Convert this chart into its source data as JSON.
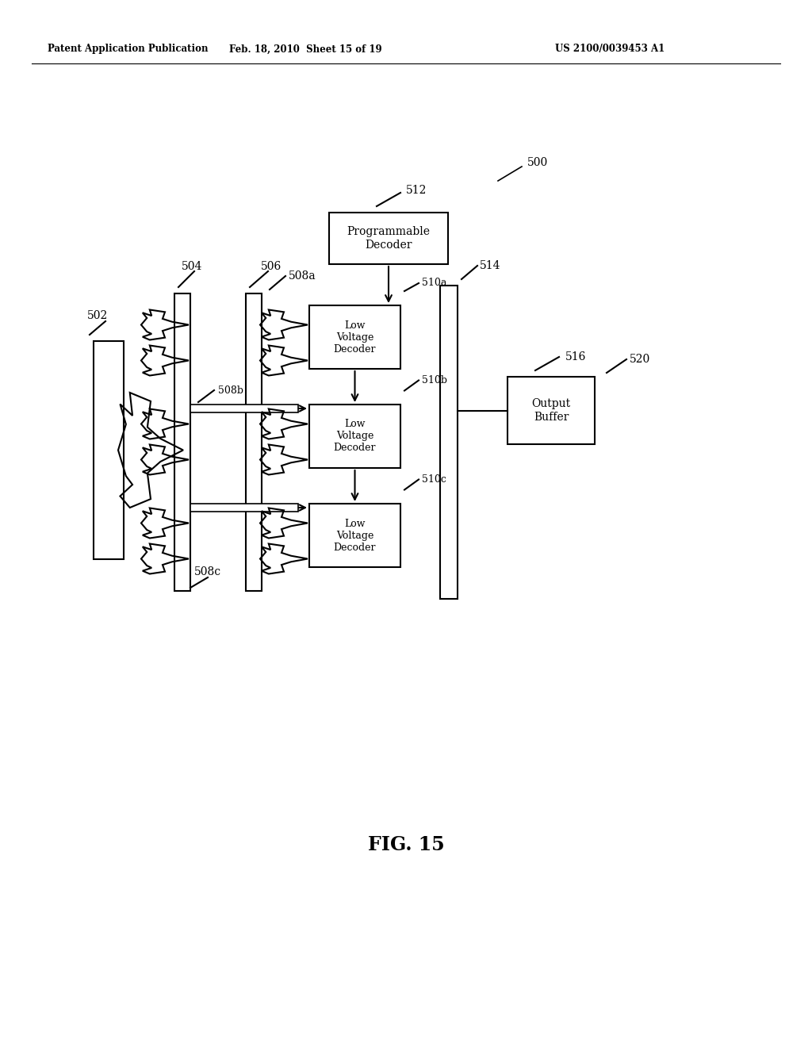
{
  "bg_color": "#ffffff",
  "header_left": "Patent Application Publication",
  "header_mid": "Feb. 18, 2010  Sheet 15 of 19",
  "header_right": "US 2100/0039453 A1",
  "fig_label": "FIG. 15",
  "prog_decoder_text": "Programmable\nDecoder",
  "lv_decoder_text": "Low\nVoltage\nDecoder",
  "output_buffer_text": "Output\nBuffer",
  "label_500": "500",
  "label_502": "502",
  "label_504": "504",
  "label_506": "506",
  "label_508a": "508a",
  "label_508b": "508b",
  "label_508c": "508c",
  "label_510a": "510a",
  "label_510b": "510b",
  "label_510c": "510c",
  "label_512": "512",
  "label_514": "514",
  "label_516": "516",
  "label_520": "520"
}
